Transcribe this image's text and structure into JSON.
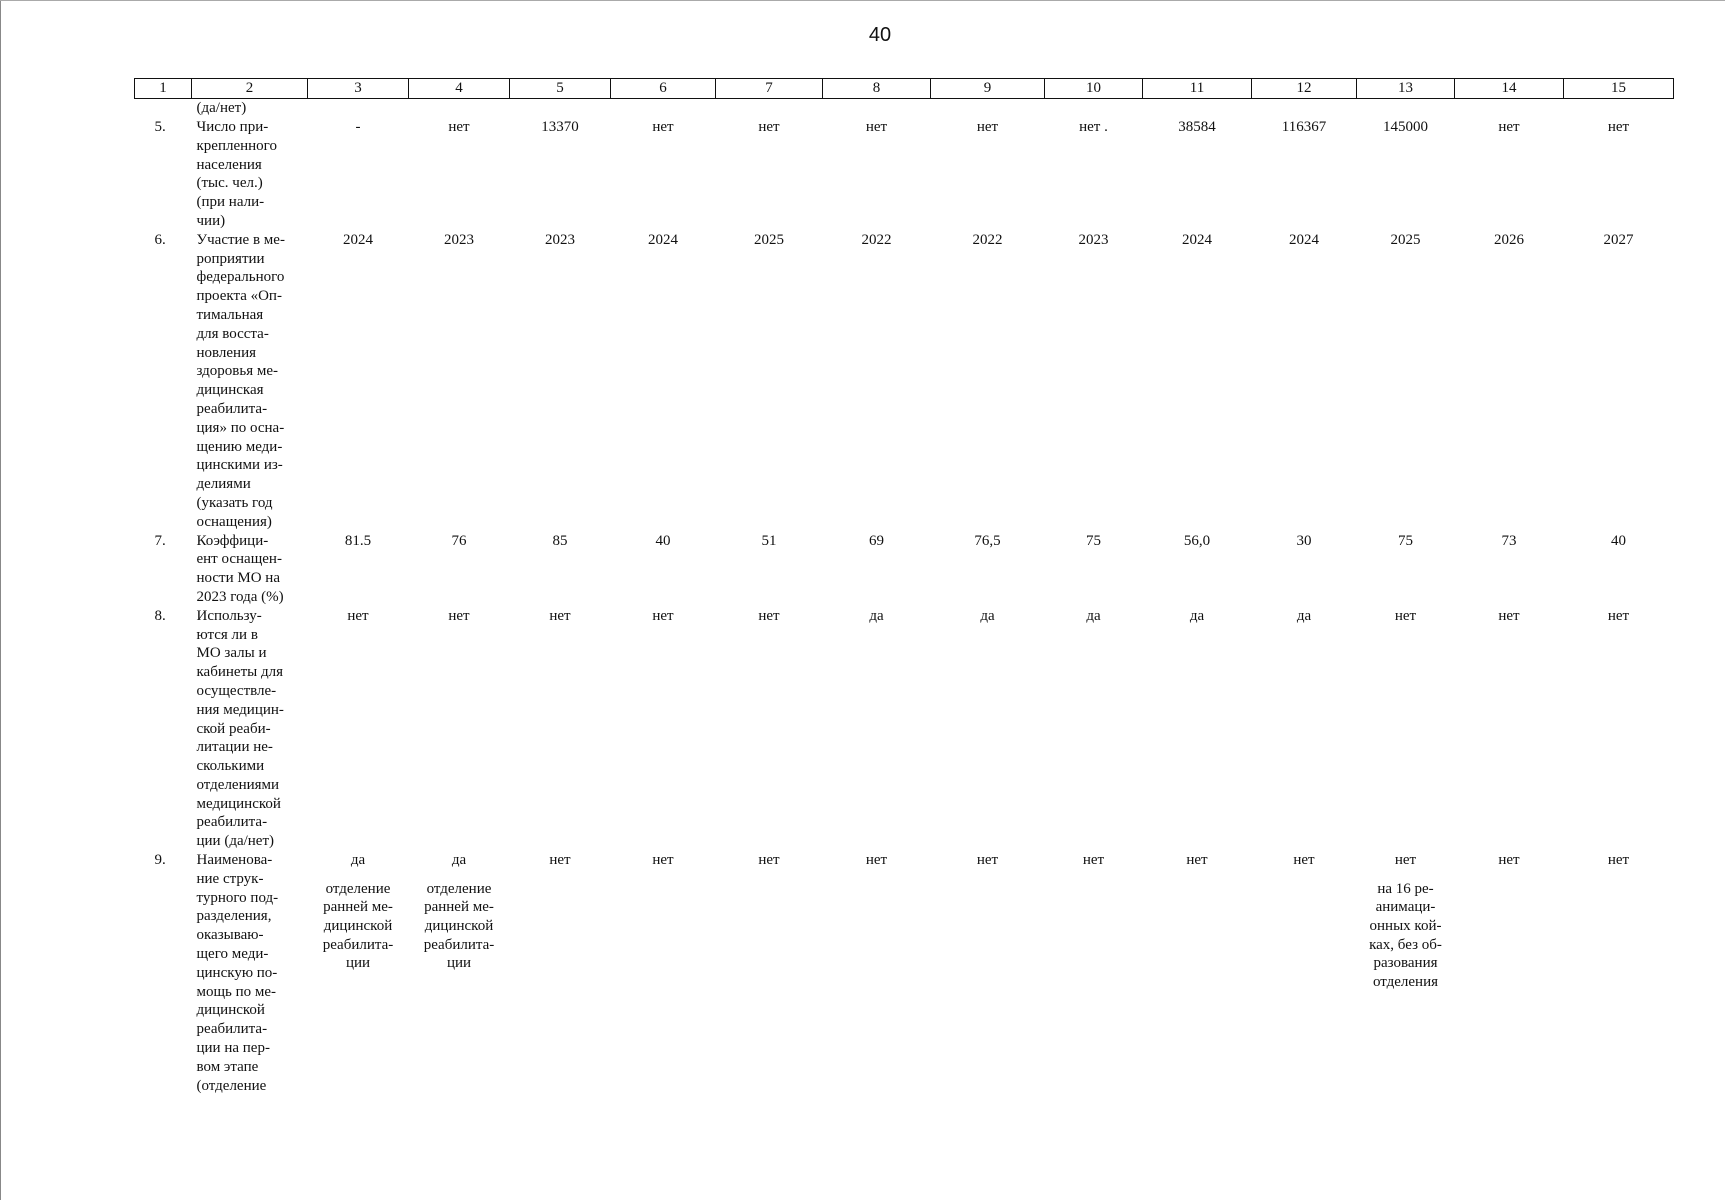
{
  "page_number": "40",
  "column_headers": [
    "1",
    "2",
    "3",
    "4",
    "5",
    "6",
    "7",
    "8",
    "9",
    "10",
    "11",
    "12",
    "13",
    "14",
    "15"
  ],
  "continuation": "(да/нет)",
  "rows": [
    {
      "num": "5.",
      "label": "Число при-\nкрепленного\nнаселения\n(тыс. чел.)\n(при нали-\nчии)",
      "values": [
        "-",
        "нет",
        "13370",
        "нет",
        "нет",
        "нет",
        "нет",
        "нет .",
        "38584",
        "116367",
        "145000",
        "нет",
        "нет"
      ],
      "notes": [
        "",
        "",
        "",
        "",
        "",
        "",
        "",
        "",
        "",
        "",
        "",
        "",
        ""
      ]
    },
    {
      "num": "6.",
      "label": "Участие в ме-\nроприятии\nфедерального\nпроекта «Оп-\nтимальная\nдля восста-\nновления\nздоровья ме-\nдицинская\nреабилита-\nция» по осна-\nщению меди-\nцинскими из-\nделиями\n(указать год\nоснащения)",
      "values": [
        "2024",
        "2023",
        "2023",
        "2024",
        "2025",
        "2022",
        "2022",
        "2023",
        "2024",
        "2024",
        "2025",
        "2026",
        "2027"
      ],
      "notes": [
        "",
        "",
        "",
        "",
        "",
        "",
        "",
        "",
        "",
        "",
        "",
        "",
        ""
      ]
    },
    {
      "num": "7.",
      "label": "Коэффици-\nент оснащен-\nности МО на\n2023 года (%)",
      "values": [
        "81.5",
        "76",
        "85",
        "40",
        "51",
        "69",
        "76,5",
        "75",
        "56,0",
        "30",
        "75",
        "73",
        "40"
      ],
      "notes": [
        "",
        "",
        "",
        "",
        "",
        "",
        "",
        "",
        "",
        "",
        "",
        "",
        ""
      ]
    },
    {
      "num": "8.",
      "label": "Использу-\nются ли в\nМО залы и\nкабинеты для\nосуществле-\nния медицин-\nской реаби-\nлитации не-\nсколькими\nотделениями\nмедицинской\nреабилита-\nции (да/нет)",
      "values": [
        "нет",
        "нет",
        "нет",
        "нет",
        "нет",
        "да",
        "да",
        "да",
        "да",
        "да",
        "нет",
        "нет",
        "нет"
      ],
      "notes": [
        "",
        "",
        "",
        "",
        "",
        "",
        "",
        "",
        "",
        "",
        "",
        "",
        ""
      ]
    },
    {
      "num": "9.",
      "label": "Наименова-\nние струк-\nтурного под-\nразделения,\nоказываю-\nщего меди-\nцинскую по-\nмощь по ме-\nдицинской\nреабилита-\nции на пер-\nвом этапе\n(отделение",
      "values": [
        "да",
        "да",
        "нет",
        "нет",
        "нет",
        "нет",
        "нет",
        "нет",
        "нет",
        "нет",
        "нет",
        "нет",
        "нет"
      ],
      "notes": [
        "отделение\nранней ме-\nдицинской\nреабилита-\nции",
        "отделение\nранней ме-\nдицинской\nреабилита-\nции",
        "",
        "",
        "",
        "",
        "",
        "",
        "",
        "",
        "на 16 ре-\nанимаци-\nонных кой-\nках, без об-\nразования\nотделения",
        "",
        ""
      ]
    }
  ]
}
